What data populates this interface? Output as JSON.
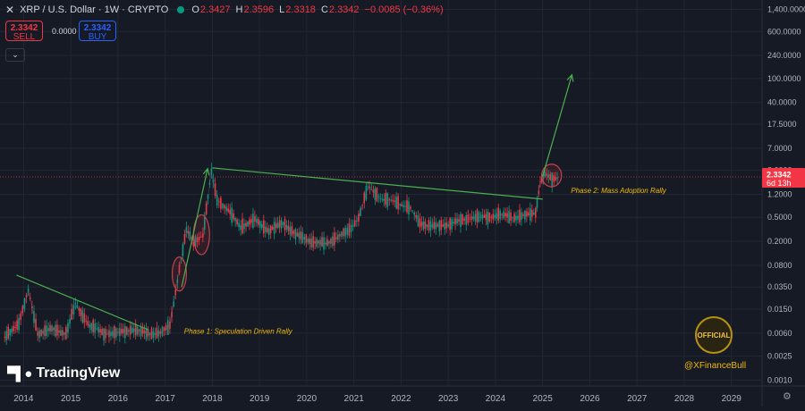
{
  "header": {
    "close_icon": "close-icon",
    "title": "XRP / U.S. Dollar · 1W · CRYPTO",
    "status_color": "#089981",
    "ohlc": [
      {
        "k": "O",
        "v": "2.3427"
      },
      {
        "k": "H",
        "v": "2.3596"
      },
      {
        "k": "L",
        "v": "2.3318"
      },
      {
        "k": "C",
        "v": "2.3342"
      }
    ],
    "change": "−0.0085 (−0.36%)"
  },
  "trade": {
    "sell_price": "2.3342",
    "sell_label": "SELL",
    "spread": "0.0000",
    "buy_price": "2.3342",
    "buy_label": "BUY"
  },
  "branding": {
    "logo_icon": "tradingview-logo-icon",
    "name": "TradingView",
    "watermark": "@XFinanceBull",
    "badge_text": "OFFICIAL"
  },
  "colors": {
    "background": "#161a25",
    "up": "#089981",
    "down": "#f23645",
    "trendline": "#4caf50",
    "annotation": "#f0b90b",
    "price_label": "#f23645"
  },
  "chart_data": {
    "type": "line",
    "title": "XRP / U.S. Dollar · 1W · CRYPTO",
    "scale": "log",
    "x_ticks": [
      "2014",
      "2015",
      "2016",
      "2017",
      "2018",
      "2019",
      "2020",
      "2021",
      "2022",
      "2023",
      "2024",
      "2025",
      "2026",
      "2027",
      "2028",
      "2029"
    ],
    "y_ticks": [
      "1,400.0000",
      "600.0000",
      "240.0000",
      "100.0000",
      "40.0000",
      "17.5000",
      "7.0000",
      "3.0000",
      "1.2000",
      "0.5000",
      "0.2000",
      "0.0800",
      "0.0350",
      "0.0150",
      "0.0060",
      "0.0025",
      "0.0010"
    ],
    "ylim": [
      0.0008,
      2000
    ],
    "series": [
      {
        "x": [
          2013.6,
          2013.9,
          2014.1,
          2014.3,
          2014.6,
          2014.9,
          2015.1,
          2015.4,
          2015.7,
          2016.0,
          2016.3,
          2016.6,
          2016.9,
          2017.1,
          2017.3,
          2017.45,
          2017.6,
          2017.8,
          2017.98,
          2018.1,
          2018.3,
          2018.6,
          2018.9,
          2019.2,
          2019.5,
          2019.8,
          2020.1,
          2020.4,
          2020.7,
          2020.9,
          2021.1,
          2021.3,
          2021.6,
          2021.9,
          2022.2,
          2022.4,
          2022.7,
          2023.0,
          2023.3,
          2023.5,
          2023.8,
          2024.1,
          2024.4,
          2024.7,
          2024.85,
          2024.95,
          2025.05,
          2025.2,
          2025.35
        ],
        "values": [
          0.005,
          0.009,
          0.03,
          0.006,
          0.007,
          0.006,
          0.018,
          0.008,
          0.006,
          0.006,
          0.007,
          0.006,
          0.006,
          0.008,
          0.07,
          0.3,
          0.2,
          0.25,
          2.8,
          1.0,
          0.7,
          0.35,
          0.45,
          0.3,
          0.4,
          0.25,
          0.2,
          0.18,
          0.25,
          0.3,
          0.5,
          1.6,
          1.0,
          0.9,
          0.7,
          0.4,
          0.35,
          0.38,
          0.45,
          0.5,
          0.5,
          0.55,
          0.5,
          0.55,
          0.6,
          2.0,
          2.6,
          2.1,
          2.3342
        ]
      }
    ],
    "trendlines": [
      {
        "x": [
          2013.85,
          2016.65
        ],
        "values": [
          0.055,
          0.0068
        ]
      },
      {
        "x": [
          2018.0,
          2025.0
        ],
        "values": [
          3.3,
          1.0
        ]
      },
      {
        "x": [
          2017.35,
          2017.9
        ],
        "values": [
          0.035,
          3.2
        ]
      },
      {
        "x": [
          2025.0,
          2025.62
        ],
        "values": [
          2.4,
          115
        ]
      }
    ],
    "highlights": [
      {
        "x": [
          2017.15,
          2017.45
        ],
        "values": [
          0.03,
          0.11
        ]
      },
      {
        "x": [
          2017.6,
          2017.94
        ],
        "values": [
          0.12,
          0.55
        ]
      },
      {
        "x": [
          2024.98,
          2025.4
        ],
        "values": [
          1.6,
          3.8
        ]
      }
    ],
    "annotations": [
      {
        "text": "Phase 1: Speculation Driven Rally",
        "x": 2017.4,
        "value": 0.0065
      },
      {
        "text": "Phase 2: Mass Adoption Rally",
        "x": 2025.6,
        "value": 1.4
      }
    ],
    "last_price": {
      "value": 2.3342,
      "label": "2.3342",
      "countdown": "6d 13h"
    }
  }
}
